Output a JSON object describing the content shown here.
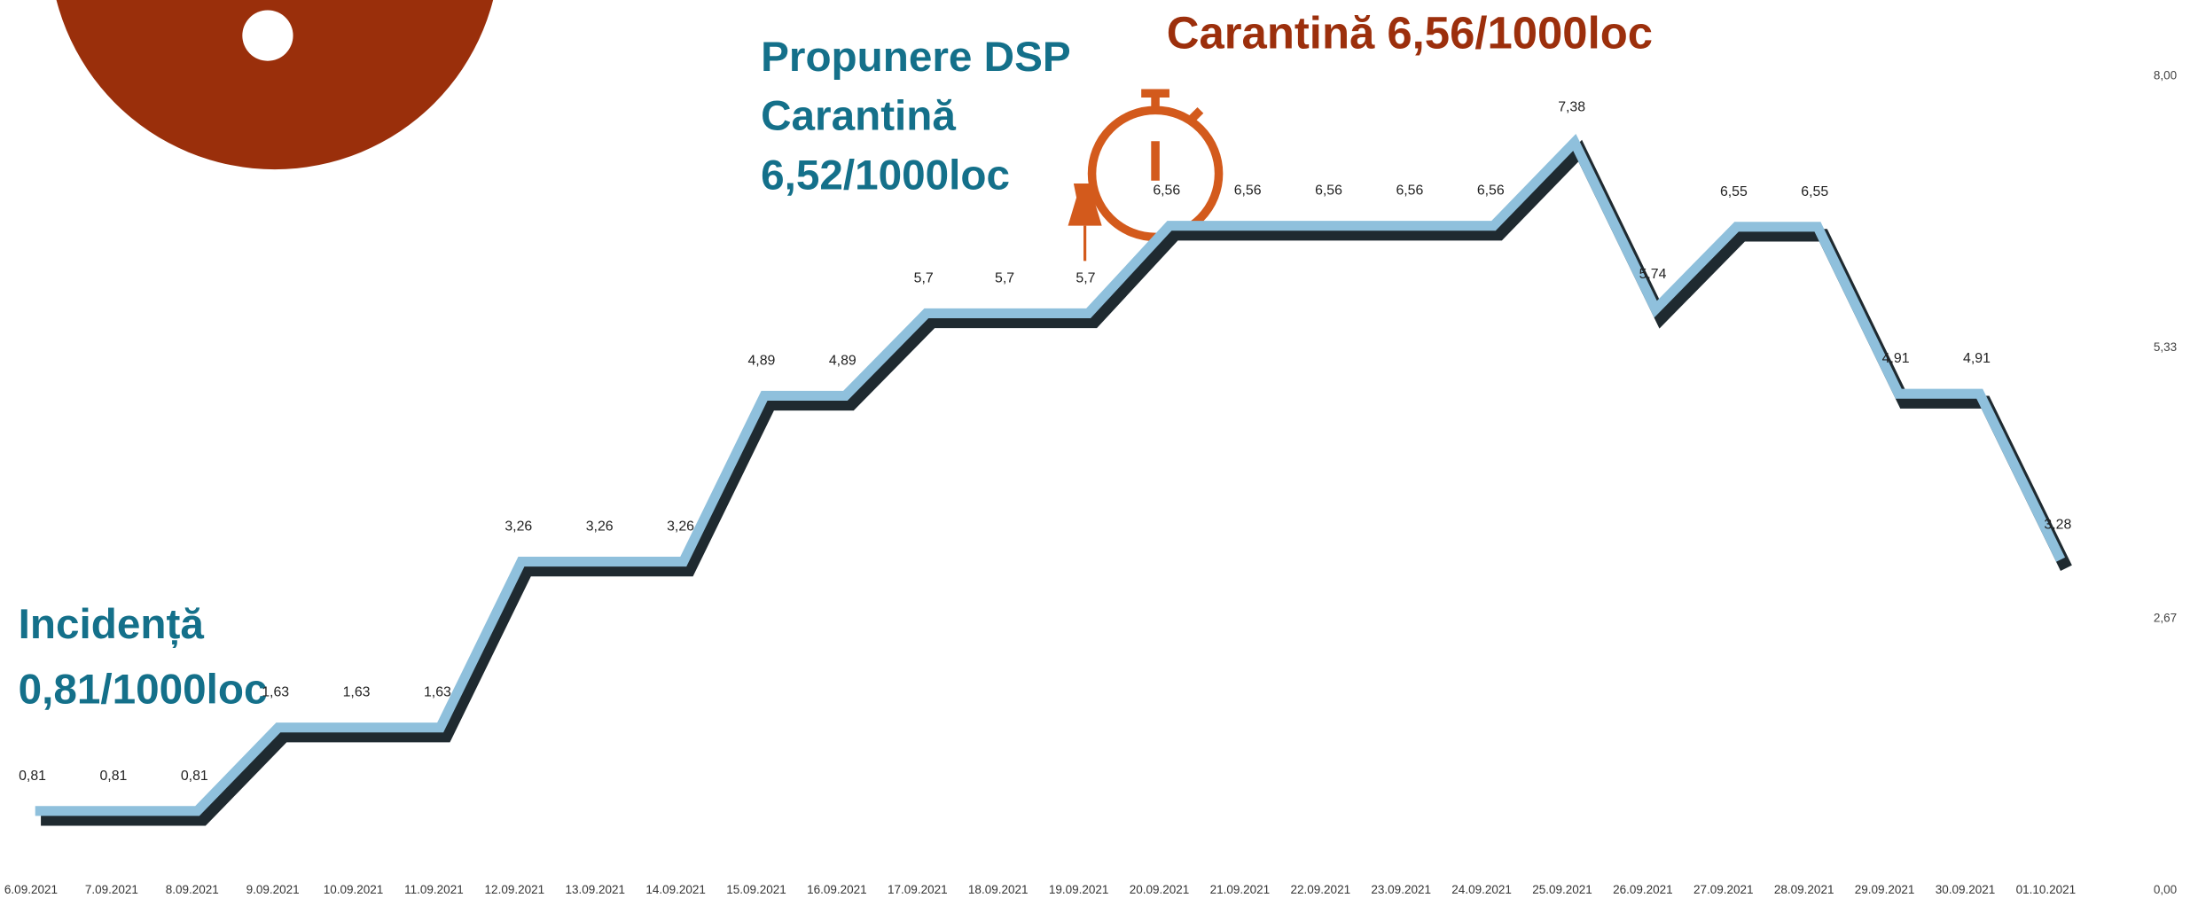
{
  "chart_data": {
    "type": "line",
    "categories": [
      "6.09.2021",
      "7.09.2021",
      "8.09.2021",
      "9.09.2021",
      "10.09.2021",
      "11.09.2021",
      "12.09.2021",
      "13.09.2021",
      "14.09.2021",
      "15.09.2021",
      "16.09.2021",
      "17.09.2021",
      "18.09.2021",
      "19.09.2021",
      "20.09.2021",
      "21.09.2021",
      "22.09.2021",
      "23.09.2021",
      "24.09.2021",
      "25.09.2021",
      "26.09.2021",
      "27.09.2021",
      "28.09.2021",
      "29.09.2021",
      "30.09.2021",
      "01.10.2021"
    ],
    "values": [
      0.81,
      0.81,
      0.81,
      1.63,
      1.63,
      1.63,
      3.26,
      3.26,
      3.26,
      4.89,
      4.89,
      5.7,
      5.7,
      5.7,
      6.56,
      6.56,
      6.56,
      6.56,
      6.56,
      7.38,
      5.74,
      6.55,
      6.55,
      4.91,
      4.91,
      3.28
    ],
    "value_labels": [
      "0,81",
      "0,81",
      "0,81",
      "1,63",
      "1,63",
      "1,63",
      "3,26",
      "3,26",
      "3,26",
      "4,89",
      "4,89",
      "5,7",
      "5,7",
      "5,7",
      "6,56",
      "6,56",
      "6,56",
      "6,56",
      "6,56",
      "7,38",
      "5,74",
      "6,55",
      "6,55",
      "4,91",
      "4,91",
      "3,28"
    ],
    "color": "#8fc0dc",
    "ylim": [
      0,
      8
    ],
    "yticks": [
      {
        "value": 0,
        "label": "0,00"
      },
      {
        "value": 2.67,
        "label": "2,67"
      },
      {
        "value": 5.33,
        "label": "5,33"
      },
      {
        "value": 8,
        "label": "8,00"
      }
    ],
    "annotations": {
      "incidence": [
        "Incidență",
        "0,81/1000loc"
      ],
      "proposal": [
        "Propunere DSP",
        "Carantină",
        "6,52/1000loc"
      ],
      "quarantine": "Carantină 6,56/1000loc"
    }
  }
}
